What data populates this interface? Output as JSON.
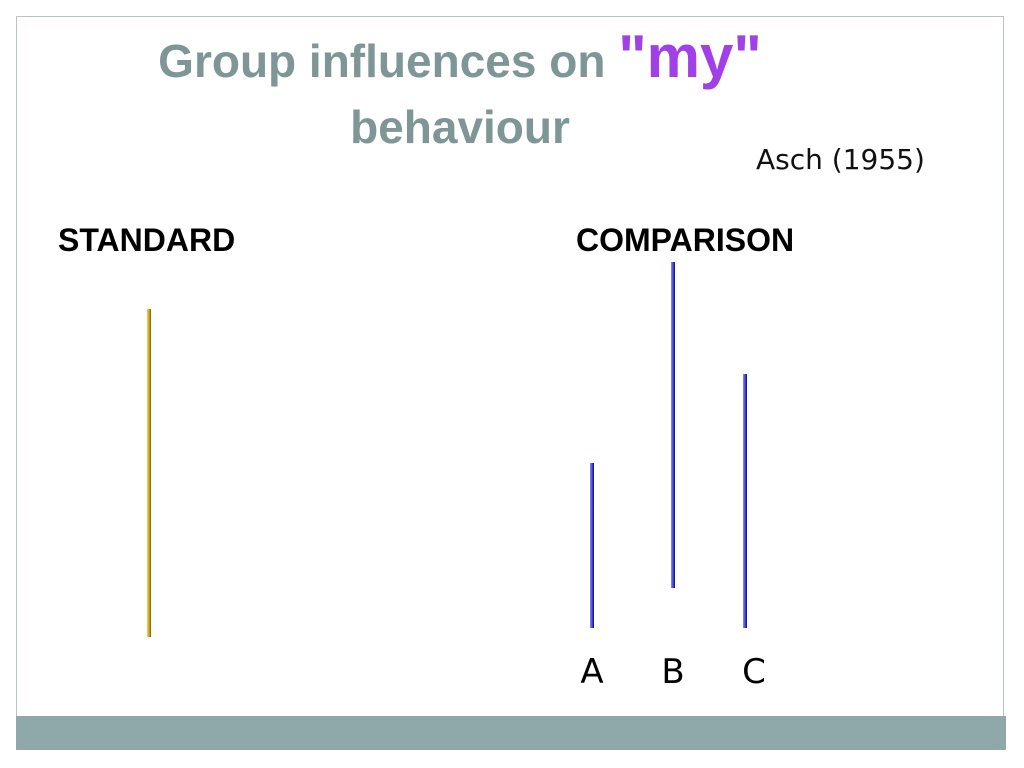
{
  "slide": {
    "title_part1": "Group influences on ",
    "title_emphasis": "\"my\"",
    "title_part2": "behaviour",
    "citation": "Asch (1955)",
    "standard_label": "STANDARD",
    "comparison_label": "COMPARISON",
    "comparison_letters": [
      "A",
      "B",
      "C"
    ],
    "colors": {
      "title": "#7e9696",
      "emphasis": "#a040e6",
      "standard_line": "#c79a12",
      "comparison_lines": "#3a3ad0",
      "footer_bar": "#8fa9aa"
    }
  }
}
